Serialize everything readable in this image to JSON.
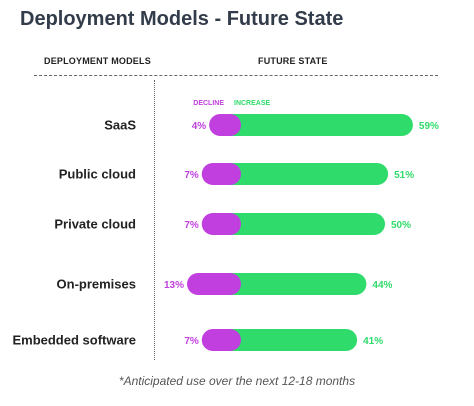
{
  "header": {
    "title": "Deployment Models - Future State",
    "left_column": "DEPLOYMENT MODELS",
    "right_column": "FUTURE STATE"
  },
  "footnote": "*Anticipated use over the next 12-18 months",
  "colors": {
    "decline": "#c13fde",
    "increase": "#2fdb6a"
  },
  "chart_data": {
    "type": "bar",
    "orientation": "horizontal-diverging",
    "categories": [
      "SaaS",
      "Public cloud",
      "Private cloud",
      "On-premises",
      "Embedded software"
    ],
    "series": [
      {
        "name": "DECLINE",
        "values": [
          4,
          7,
          7,
          13,
          7
        ],
        "labels": [
          "4%",
          "7%",
          "7%",
          "13%",
          "7%"
        ]
      },
      {
        "name": "INCREASE",
        "values": [
          59,
          51,
          50,
          44,
          41
        ],
        "labels": [
          "59%",
          "51%",
          "50%",
          "44%",
          "41%"
        ]
      }
    ],
    "legend_position": "top"
  }
}
